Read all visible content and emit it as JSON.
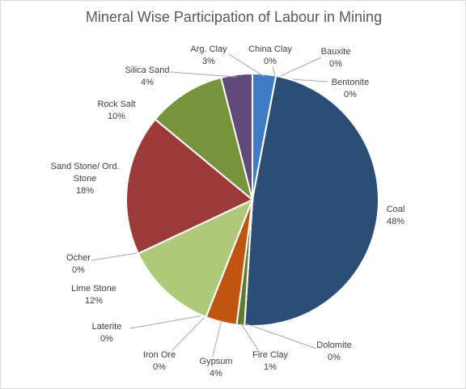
{
  "chart_data": {
    "type": "pie",
    "title": "Mineral Wise Participation of Labour in Mining",
    "categories": [
      "Arg. Clay",
      "China Clay",
      "Bauxite",
      "Bentonite",
      "Coal",
      "Dolomite",
      "Fire Clay",
      "Gypsum",
      "Iron Ore",
      "Laterite",
      "Lime Stone",
      "Ocher",
      "Sand Stone/ Ord. Stone",
      "Rock Salt",
      "Silica Sand"
    ],
    "values": [
      3,
      0,
      0,
      0,
      48,
      0,
      1,
      4,
      0,
      0,
      12,
      0,
      18,
      10,
      4
    ],
    "value_labels": [
      "3%",
      "0%",
      "0%",
      "0%",
      "48%",
      "0%",
      "1%",
      "4%",
      "0%",
      "0%",
      "12%",
      "0%",
      "18%",
      "10%",
      "4%"
    ],
    "colors": [
      "#3f7cc4",
      "#8064a2",
      "#4bacc6",
      "#f79646",
      "#2c4d75",
      "#4f6228",
      "#607a30",
      "#c0550f",
      "#7f7f7f",
      "#d99694",
      "#afc97a",
      "#c3d69b",
      "#9b3a38",
      "#77933c",
      "#604a7b"
    ]
  }
}
